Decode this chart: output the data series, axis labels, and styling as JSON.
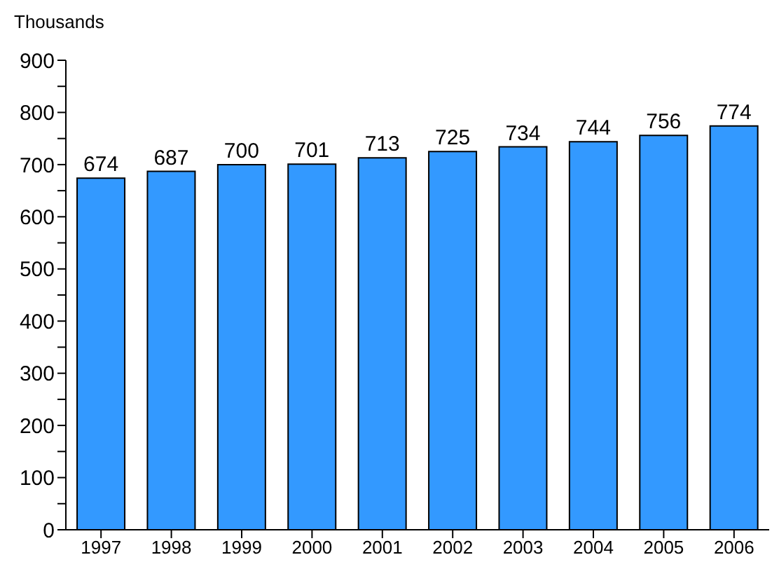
{
  "chart_data": {
    "type": "bar",
    "ylabel": "Thousands",
    "categories": [
      "1997",
      "1998",
      "1999",
      "2000",
      "2001",
      "2002",
      "2003",
      "2004",
      "2005",
      "2006"
    ],
    "values": [
      674,
      687,
      700,
      701,
      713,
      725,
      734,
      744,
      756,
      774
    ],
    "color": "#3399ff",
    "ylim": [
      0,
      900
    ],
    "yticks": [
      0,
      {
        "value": 50,
        "label": null
      },
      100,
      {
        "value": 150,
        "label": null
      },
      200,
      {
        "value": 250,
        "label": null
      },
      300,
      {
        "value": 350,
        "label": null
      },
      400,
      {
        "value": 450,
        "label": null
      },
      500,
      {
        "value": 550,
        "label": null
      },
      600,
      {
        "value": 650,
        "label": null
      },
      700,
      {
        "value": 750,
        "label": null
      },
      800,
      {
        "value": 850,
        "label": null
      },
      900
    ],
    "data_labels": true,
    "grid": false,
    "legend": false
  }
}
